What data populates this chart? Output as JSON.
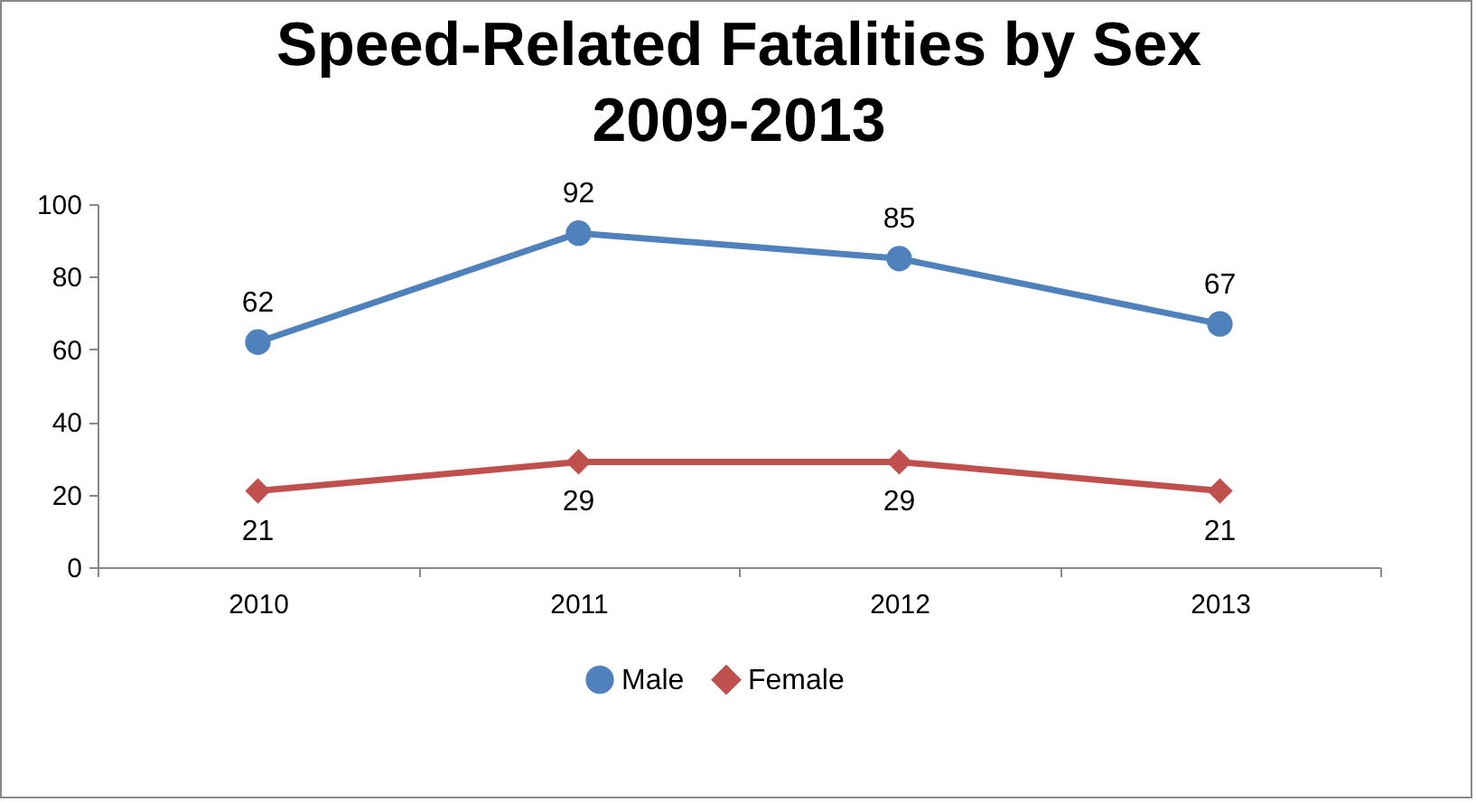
{
  "chart_data": {
    "type": "line",
    "title": "Speed-Related Fatalities by Sex\n2009-2013",
    "categories": [
      "2010",
      "2011",
      "2012",
      "2013"
    ],
    "series": [
      {
        "name": "Male",
        "color": "#4f81bd",
        "marker": "circle",
        "values": [
          62,
          92,
          85,
          67
        ]
      },
      {
        "name": "Female",
        "color": "#c0504d",
        "marker": "diamond",
        "values": [
          21,
          29,
          29,
          21
        ]
      }
    ],
    "ylim": [
      0,
      100
    ],
    "yticks": [
      0,
      20,
      40,
      60,
      80,
      100
    ],
    "grid": false,
    "legend": "bottom",
    "data_labels": true
  }
}
